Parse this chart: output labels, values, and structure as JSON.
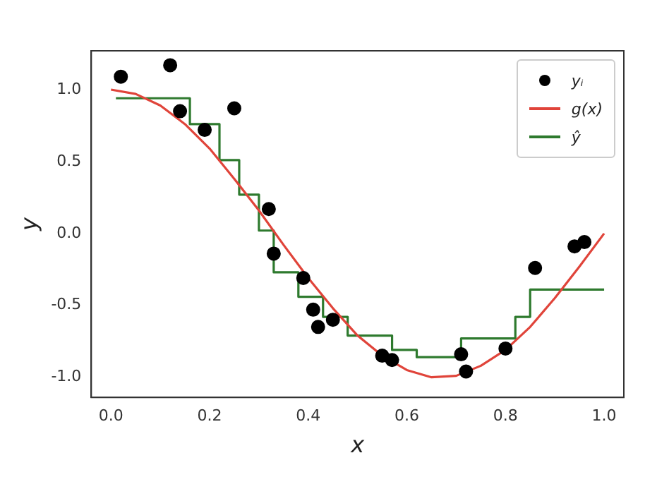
{
  "chart_data": {
    "type": "scatter",
    "xlabel": "x",
    "ylabel": "y",
    "xlim": [
      -0.04,
      1.04
    ],
    "ylim": [
      -1.14,
      1.27
    ],
    "xticks": [
      {
        "value": 0,
        "label": "0.0"
      },
      {
        "value": 0.2,
        "label": "0.2"
      },
      {
        "value": 0.4,
        "label": "0.4"
      },
      {
        "value": 0.6,
        "label": "0.6"
      },
      {
        "value": 0.8,
        "label": "0.8"
      },
      {
        "value": 1,
        "label": "1.0"
      }
    ],
    "yticks": [
      {
        "value": -1,
        "label": "-1.0"
      },
      {
        "value": -0.5,
        "label": "-0.5"
      },
      {
        "value": 0,
        "label": "0.0"
      },
      {
        "value": 0.5,
        "label": "0.5"
      },
      {
        "value": 1,
        "label": "1.0"
      }
    ],
    "legend": "top right",
    "grid": false,
    "series": [
      {
        "name": "yᵢ",
        "type": "scatter",
        "marker": "circle",
        "color": "#000000",
        "x": [
          0.02,
          0.12,
          0.14,
          0.19,
          0.25,
          0.32,
          0.33,
          0.39,
          0.41,
          0.42,
          0.45,
          0.55,
          0.57,
          0.71,
          0.72,
          0.8,
          0.86,
          0.94,
          0.96
        ],
        "values": [
          1.09,
          1.17,
          0.85,
          0.72,
          0.87,
          0.17,
          -0.14,
          -0.31,
          -0.53,
          -0.65,
          -0.6,
          -0.85,
          -0.88,
          -0.84,
          -0.96,
          -0.8,
          -0.24,
          -0.09,
          -0.06
        ]
      },
      {
        "name": "g(x)",
        "type": "line",
        "marker": "none",
        "color": "#e0443a",
        "x": [
          0,
          0.05,
          0.1,
          0.15,
          0.2,
          0.25,
          0.3,
          0.35,
          0.4,
          0.45,
          0.5,
          0.55,
          0.6,
          0.65,
          0.7,
          0.75,
          0.8,
          0.85,
          0.9,
          0.95,
          1
        ],
        "values": [
          1,
          0.97,
          0.89,
          0.76,
          0.59,
          0.38,
          0.16,
          -0.08,
          -0.31,
          -0.52,
          -0.71,
          -0.85,
          -0.95,
          -1,
          -0.99,
          -0.92,
          -0.81,
          -0.65,
          -0.45,
          -0.23,
          0
        ]
      },
      {
        "name": "ŷ",
        "type": "step",
        "marker": "none",
        "color": "#2e7a2e",
        "x": [
          0.01,
          0.16,
          0.22,
          0.26,
          0.3,
          0.33,
          0.38,
          0.43,
          0.48,
          0.57,
          0.62,
          0.71,
          0.82,
          0.85,
          1
        ],
        "values": [
          0.94,
          0.76,
          0.51,
          0.27,
          0.02,
          -0.27,
          -0.44,
          -0.58,
          -0.71,
          -0.81,
          -0.86,
          -0.73,
          -0.58,
          -0.39,
          -0.39
        ]
      }
    ]
  }
}
